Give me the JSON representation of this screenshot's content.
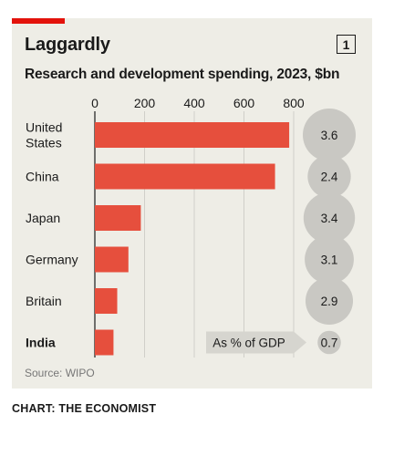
{
  "header": {
    "title": "Laggardly",
    "badge": "1"
  },
  "footer": {
    "source": "Source: WIPO",
    "credit": "CHART: THE ECONOMIST"
  },
  "colors": {
    "accent": "#e3120b",
    "bar": "#e64f3d",
    "background": "#eeede6",
    "circle": "#c9c8c3"
  },
  "chart_data": {
    "type": "bar",
    "orientation": "horizontal",
    "title": "Research and development spending, 2023, $bn",
    "categories": [
      "United States",
      "China",
      "Japan",
      "Germany",
      "Britain",
      "India"
    ],
    "category_lines": [
      [
        "United",
        "States"
      ],
      [
        "China"
      ],
      [
        "Japan"
      ],
      [
        "Germany"
      ],
      [
        "Britain"
      ],
      [
        "India"
      ]
    ],
    "highlight_category": "India",
    "values": [
      782,
      725,
      185,
      135,
      90,
      75
    ],
    "xlim": [
      0,
      800
    ],
    "xticks": [
      0,
      200,
      400,
      600,
      800
    ],
    "gdp_series": {
      "label": "As % of GDP",
      "values": [
        3.6,
        2.4,
        3.4,
        3.1,
        2.9,
        0.7
      ],
      "labels": [
        "3.6",
        "2.4",
        "3.4",
        "3.1",
        "2.9",
        "0.7"
      ]
    }
  }
}
